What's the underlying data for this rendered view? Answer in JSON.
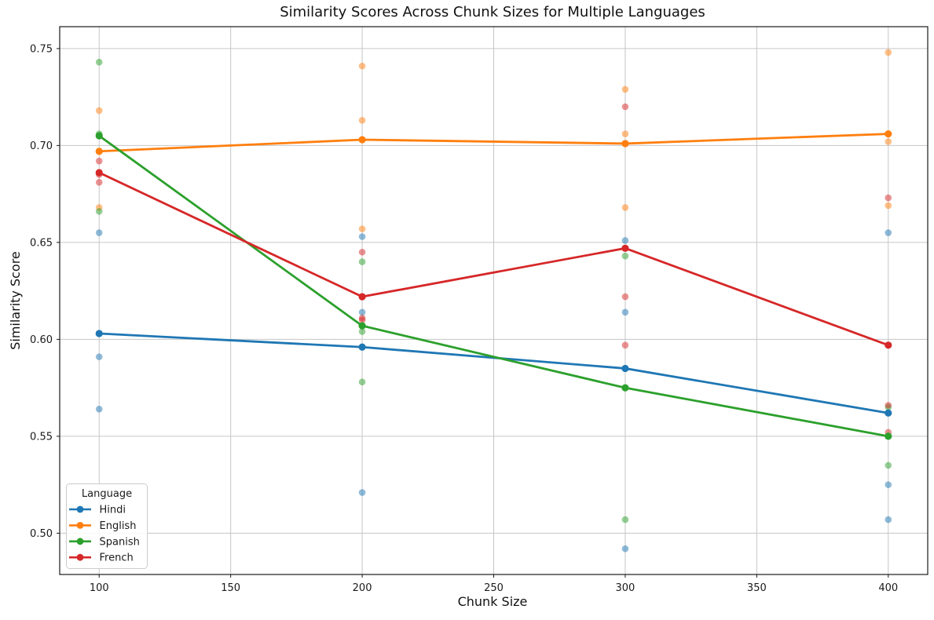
{
  "chart_data": {
    "type": "line",
    "title": "Similarity Scores Across Chunk Sizes for Multiple Languages",
    "xlabel": "Chunk Size",
    "ylabel": "Similarity Score",
    "grid": true,
    "legend": {
      "title": "Language",
      "position": "lower-left"
    },
    "x": [
      100,
      200,
      300,
      400
    ],
    "series": [
      {
        "name": "Hindi",
        "color": "#1f77b4",
        "line": [
          0.603,
          0.596,
          0.585,
          0.562
        ],
        "scatter": [
          [
            0.655,
            0.591,
            0.564
          ],
          [
            0.653,
            0.614,
            0.521
          ],
          [
            0.651,
            0.614,
            0.492
          ],
          [
            0.655,
            0.525,
            0.507
          ]
        ]
      },
      {
        "name": "English",
        "color": "#ff7f0e",
        "line": [
          0.697,
          0.703,
          0.701,
          0.706
        ],
        "scatter": [
          [
            0.718,
            0.705,
            0.668
          ],
          [
            0.741,
            0.713,
            0.657
          ],
          [
            0.729,
            0.706,
            0.668
          ],
          [
            0.748,
            0.702,
            0.669
          ]
        ]
      },
      {
        "name": "Spanish",
        "color": "#2ca02c",
        "line": [
          0.705,
          0.607,
          0.575,
          0.55
        ],
        "scatter": [
          [
            0.743,
            0.706,
            0.666
          ],
          [
            0.64,
            0.604,
            0.578
          ],
          [
            0.643,
            0.575,
            0.507
          ],
          [
            0.565,
            0.55,
            0.535
          ]
        ]
      },
      {
        "name": "French",
        "color": "#d62728",
        "line": [
          0.686,
          0.622,
          0.647,
          0.597
        ],
        "scatter": [
          [
            0.692,
            0.685,
            0.681
          ],
          [
            0.645,
            0.611,
            0.61
          ],
          [
            0.72,
            0.622,
            0.597
          ],
          [
            0.673,
            0.566,
            0.552
          ]
        ]
      }
    ],
    "x_ticks": {
      "values": [
        100,
        150,
        200,
        250,
        300,
        350,
        400
      ],
      "labels": [
        "100",
        "150",
        "200",
        "250",
        "300",
        "350",
        "400"
      ]
    },
    "y_ticks": {
      "values": [
        0.5,
        0.55,
        0.6,
        0.65,
        0.7,
        0.75
      ],
      "labels": [
        "0.50",
        "0.55",
        "0.60",
        "0.65",
        "0.70",
        "0.75"
      ]
    },
    "xlim": [
      85,
      415
    ],
    "ylim": [
      0.4787,
      0.7613
    ],
    "colors": {
      "grid": "#c6c6c6",
      "axes": "#1a1a1a",
      "text": "#1a1a1a",
      "background": "#ffffff"
    }
  }
}
